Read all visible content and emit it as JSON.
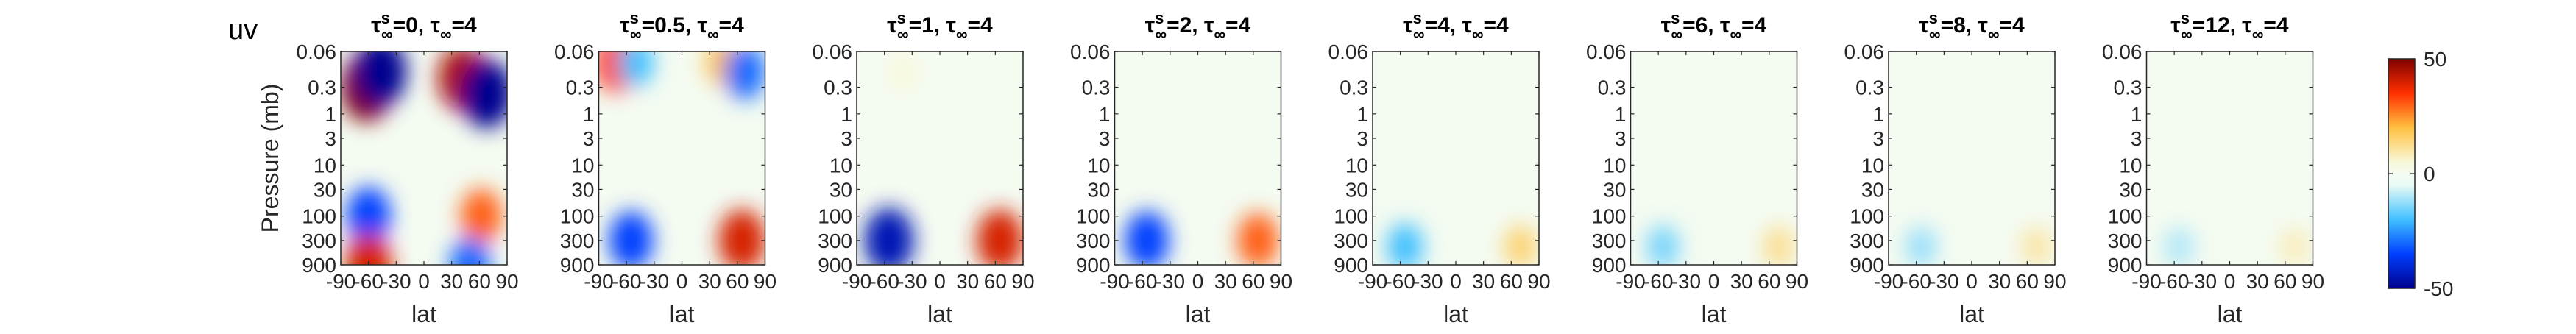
{
  "figure": {
    "label": "uv"
  },
  "colorbar": {
    "ticks": [
      "50",
      "0",
      "-50"
    ],
    "values": [
      50,
      0,
      -50
    ],
    "range": [
      -50,
      50
    ],
    "colormap": "blue-white-red"
  },
  "chart_data": [
    {
      "type": "heatmap",
      "tau_s": "0",
      "tau": "4",
      "title_prefix": "=0, ",
      "title_suffix": "=4",
      "xlabel": "lat",
      "ylabel": "Pressure (mb)",
      "xticks": [
        "-90",
        "-60",
        "-30",
        "0",
        "30",
        "60",
        "90"
      ],
      "xlim": [
        -90,
        90
      ],
      "yticks": [
        "0.06",
        "0.3",
        "1",
        "3",
        "10",
        "30",
        "100",
        "300",
        "900"
      ],
      "ylim": [
        0.06,
        900
      ],
      "yscale": "log",
      "features": [
        {
          "lat": -62,
          "p": 0.3,
          "value": 50
        },
        {
          "lat": -47,
          "p": 0.15,
          "value": -50
        },
        {
          "lat": 42,
          "p": 0.2,
          "value": 45
        },
        {
          "lat": 68,
          "p": 0.4,
          "value": -50
        },
        {
          "lat": -60,
          "p": 100,
          "value": -35
        },
        {
          "lat": 62,
          "p": 100,
          "value": 30
        },
        {
          "lat": -60,
          "p": 900,
          "value": 40
        },
        {
          "lat": 50,
          "p": 900,
          "value": -30
        }
      ]
    },
    {
      "type": "heatmap",
      "tau_s": "s",
      "tau": "4",
      "title_prefix": "=0.5, ",
      "title_suffix": "=4",
      "xlabel": "lat",
      "ylabel": "",
      "xticks": [
        "-90",
        "-60",
        "-30",
        "0",
        "30",
        "60",
        "90"
      ],
      "xlim": [
        -90,
        90
      ],
      "yticks": [
        "0.06",
        "0.3",
        "1",
        "3",
        "10",
        "30",
        "100",
        "300",
        "900"
      ],
      "ylim": [
        0.06,
        900
      ],
      "yscale": "log",
      "features": [
        {
          "lat": -70,
          "p": 0.1,
          "value": 35
        },
        {
          "lat": -50,
          "p": 0.1,
          "value": -20
        },
        {
          "lat": 45,
          "p": 0.1,
          "value": 20
        },
        {
          "lat": 68,
          "p": 0.15,
          "value": -30
        },
        {
          "lat": -55,
          "p": 300,
          "value": -35
        },
        {
          "lat": 65,
          "p": 300,
          "value": 40
        }
      ]
    },
    {
      "type": "heatmap",
      "tau_s": "s",
      "tau": "4",
      "title_prefix": "=1, ",
      "title_suffix": "=4",
      "xlabel": "lat",
      "ylabel": "",
      "xticks": [
        "-90",
        "-60",
        "-30",
        "0",
        "30",
        "60",
        "90"
      ],
      "xlim": [
        -90,
        90
      ],
      "yticks": [
        "0.06",
        "0.3",
        "1",
        "3",
        "10",
        "30",
        "100",
        "300",
        "900"
      ],
      "ylim": [
        0.06,
        900
      ],
      "yscale": "log",
      "features": [
        {
          "lat": -55,
          "p": 300,
          "value": -45
        },
        {
          "lat": 65,
          "p": 300,
          "value": 40
        },
        {
          "lat": -40,
          "p": 0.15,
          "value": 5
        }
      ]
    },
    {
      "type": "heatmap",
      "tau_s": "s",
      "tau": "4",
      "title_prefix": "=2, ",
      "title_suffix": "=4",
      "xlabel": "lat",
      "ylabel": "",
      "xticks": [
        "-90",
        "-60",
        "-30",
        "0",
        "30",
        "60",
        "90"
      ],
      "xlim": [
        -90,
        90
      ],
      "yticks": [
        "0.06",
        "0.3",
        "1",
        "3",
        "10",
        "30",
        "100",
        "300",
        "900"
      ],
      "ylim": [
        0.06,
        900
      ],
      "yscale": "log",
      "features": [
        {
          "lat": -55,
          "p": 300,
          "value": -35
        },
        {
          "lat": 65,
          "p": 300,
          "value": 30
        }
      ]
    },
    {
      "type": "heatmap",
      "tau_s": "s",
      "tau": "4",
      "title_prefix": "=4, ",
      "title_suffix": "=4",
      "xlabel": "lat",
      "ylabel": "",
      "xticks": [
        "-90",
        "-60",
        "-30",
        "0",
        "30",
        "60",
        "90"
      ],
      "xlim": [
        -90,
        90
      ],
      "yticks": [
        "0.06",
        "0.3",
        "1",
        "3",
        "10",
        "30",
        "100",
        "300",
        "900"
      ],
      "ylim": [
        0.06,
        900
      ],
      "yscale": "log",
      "features": [
        {
          "lat": -55,
          "p": 400,
          "value": -20
        },
        {
          "lat": 70,
          "p": 400,
          "value": 15
        }
      ]
    },
    {
      "type": "heatmap",
      "tau_s": "s",
      "tau": "4",
      "title_prefix": "=6, ",
      "title_suffix": "=4",
      "xlabel": "lat",
      "ylabel": "",
      "xticks": [
        "-90",
        "-60",
        "-30",
        "0",
        "30",
        "60",
        "90"
      ],
      "xlim": [
        -90,
        90
      ],
      "yticks": [
        "0.06",
        "0.3",
        "1",
        "3",
        "10",
        "30",
        "100",
        "300",
        "900"
      ],
      "ylim": [
        0.06,
        900
      ],
      "yscale": "log",
      "features": [
        {
          "lat": -55,
          "p": 400,
          "value": -15
        },
        {
          "lat": 70,
          "p": 400,
          "value": 12
        }
      ]
    },
    {
      "type": "heatmap",
      "tau_s": "s",
      "tau": "4",
      "title_prefix": "=8, ",
      "title_suffix": "=4",
      "xlabel": "lat",
      "ylabel": "",
      "xticks": [
        "-90",
        "-60",
        "-30",
        "0",
        "30",
        "60",
        "90"
      ],
      "xlim": [
        -90,
        90
      ],
      "yticks": [
        "0.06",
        "0.3",
        "1",
        "3",
        "10",
        "30",
        "100",
        "300",
        "900"
      ],
      "ylim": [
        0.06,
        900
      ],
      "yscale": "log",
      "features": [
        {
          "lat": -55,
          "p": 400,
          "value": -12
        },
        {
          "lat": 70,
          "p": 400,
          "value": 10
        }
      ]
    },
    {
      "type": "heatmap",
      "tau_s": "s",
      "tau": "4",
      "title_prefix": "=12, ",
      "title_suffix": "=4",
      "xlabel": "lat",
      "ylabel": "",
      "xticks": [
        "-90",
        "-60",
        "-30",
        "0",
        "30",
        "60",
        "90"
      ],
      "xlim": [
        -90,
        90
      ],
      "yticks": [
        "0.06",
        "0.3",
        "1",
        "3",
        "10",
        "30",
        "100",
        "300",
        "900"
      ],
      "ylim": [
        0.06,
        900
      ],
      "yscale": "log",
      "features": [
        {
          "lat": -55,
          "p": 400,
          "value": -10
        },
        {
          "lat": 70,
          "p": 400,
          "value": 8
        }
      ]
    }
  ]
}
